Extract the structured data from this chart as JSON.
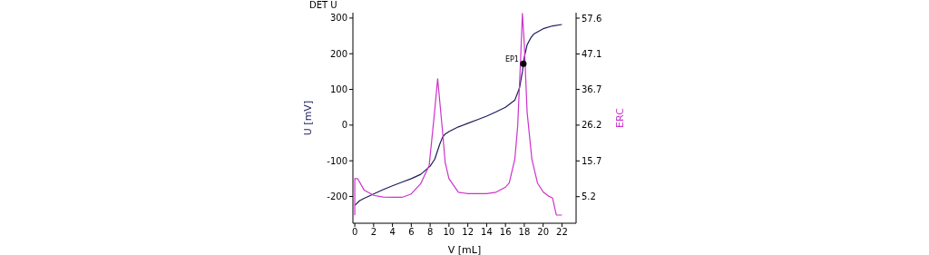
{
  "chart_data": {
    "type": "line",
    "title": "DET U",
    "xlabel": "V [mL]",
    "ylabel": "U [mV]",
    "y2label": "ERC",
    "xlim": [
      -0.2,
      23.5
    ],
    "xticks": [
      0,
      2,
      4,
      6,
      8,
      10,
      12,
      14,
      16,
      18,
      20,
      22
    ],
    "ylim": [
      -275,
      315
    ],
    "yticks": [
      -200,
      -100,
      0,
      100,
      200,
      300
    ],
    "y2lim": [
      -2.6,
      59.2
    ],
    "y2ticks": [
      5.2,
      15.7,
      26.2,
      36.7,
      47.1,
      57.6
    ],
    "grid": false,
    "legend": false,
    "marker": "none",
    "line_style": "solid",
    "series": [
      {
        "color": "#1c1c5c",
        "x": [
          0,
          0.5,
          1,
          2,
          3,
          4,
          5,
          6,
          7,
          8,
          8.5,
          9,
          9.3,
          9.6,
          10,
          11,
          12,
          13,
          14,
          15,
          16,
          17,
          17.5,
          17.8,
          18,
          18.3,
          18.7,
          19,
          20,
          21,
          22
        ],
        "values": [
          -225,
          -212,
          -205,
          -193,
          -181,
          -170,
          -160,
          -150,
          -138,
          -115,
          -95,
          -55,
          -35,
          -25,
          -18,
          -5,
          5,
          15,
          25,
          37,
          50,
          70,
          105,
          150,
          190,
          225,
          245,
          255,
          270,
          278,
          282
        ]
      },
      {
        "axis": "y2",
        "color": "#cc33cc",
        "x": [
          0,
          0,
          0.3,
          1,
          2,
          3,
          4,
          5,
          6,
          7,
          7.9,
          8.4,
          8.8,
          9.3,
          9.6,
          10,
          11,
          12,
          13,
          14,
          15,
          16,
          16.4,
          17,
          17.3,
          17.6,
          17.8,
          18,
          18.3,
          18.8,
          19.4,
          20,
          20.5,
          21,
          21.4,
          22
        ],
        "values": [
          -0.3,
          10.5,
          10.5,
          7.1,
          5.6,
          5.1,
          5.0,
          5.0,
          6.0,
          9.0,
          14.4,
          28,
          39.8,
          24.9,
          15.2,
          10.5,
          6.5,
          6.1,
          6.1,
          6.1,
          6.5,
          8.0,
          9.2,
          16.3,
          26,
          45,
          59,
          50,
          30,
          16.3,
          9.2,
          6.6,
          5.5,
          4.8,
          -0.2,
          -0.2
        ]
      },
      {
        "type": "scatter",
        "color": "#000000",
        "marker": "circle",
        "x": [
          17.9
        ],
        "values": [
          172
        ]
      }
    ],
    "annotations": [
      {
        "text": "EP1",
        "x": 17.9,
        "y": 172
      }
    ]
  }
}
